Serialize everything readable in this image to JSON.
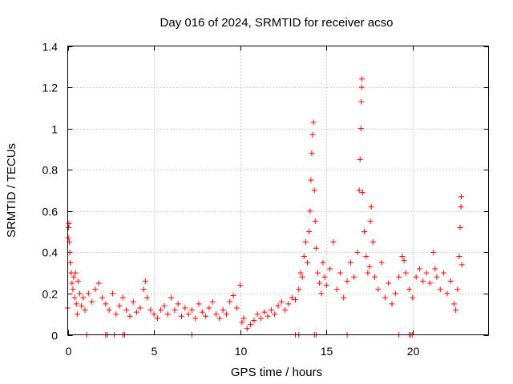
{
  "chart_data": {
    "type": "scatter",
    "title": "Day 016 of 2024, SRMTID for receiver acso",
    "xlabel": "GPS time / hours",
    "ylabel": "SRMTID / TECUs",
    "xlim": [
      0,
      24.4
    ],
    "ylim": [
      0,
      1.4
    ],
    "x_ticks": [
      0,
      5,
      10,
      15,
      20
    ],
    "x_tick_labels": [
      "0",
      "5",
      "10",
      "15",
      "20"
    ],
    "y_ticks": [
      0,
      0.2,
      0.4,
      0.6,
      0.8,
      1.0,
      1.2,
      1.4
    ],
    "y_tick_labels": [
      "0",
      "0.2",
      "0.4",
      "0.6",
      "0.8",
      "1",
      "1.2",
      "1.4"
    ],
    "grid": true,
    "marker": "+",
    "marker_color": "#ff0000",
    "series": [
      {
        "name": "SRMTID",
        "points": [
          [
            0.0,
            0.13
          ],
          [
            0.03,
            0.47
          ],
          [
            0.05,
            0.52
          ],
          [
            0.07,
            0.54
          ],
          [
            0.09,
            0.45
          ],
          [
            0.12,
            0.4
          ],
          [
            0.15,
            0.35
          ],
          [
            0.2,
            0.3
          ],
          [
            0.25,
            0.25
          ],
          [
            0.3,
            0.22
          ],
          [
            0.35,
            0.28
          ],
          [
            0.4,
            0.18
          ],
          [
            0.45,
            0.3
          ],
          [
            0.5,
            0.15
          ],
          [
            0.55,
            0.1
          ],
          [
            0.6,
            0.26
          ],
          [
            0.7,
            0.2
          ],
          [
            0.8,
            0.14
          ],
          [
            0.9,
            0.18
          ],
          [
            1.0,
            0.12
          ],
          [
            1.2,
            0.2
          ],
          [
            1.4,
            0.16
          ],
          [
            1.6,
            0.22
          ],
          [
            1.8,
            0.25
          ],
          [
            2.0,
            0.18
          ],
          [
            2.2,
            0.15
          ],
          [
            2.4,
            0.12
          ],
          [
            2.6,
            0.2
          ],
          [
            2.8,
            0.1
          ],
          [
            3.0,
            0.14
          ],
          [
            3.2,
            0.18
          ],
          [
            3.4,
            0.12
          ],
          [
            3.6,
            0.09
          ],
          [
            3.8,
            0.16
          ],
          [
            4.0,
            0.11
          ],
          [
            4.2,
            0.13
          ],
          [
            4.4,
            0.22
          ],
          [
            4.5,
            0.26
          ],
          [
            4.6,
            0.18
          ],
          [
            4.8,
            0.12
          ],
          [
            5.0,
            0.1
          ],
          [
            5.2,
            0.08
          ],
          [
            5.4,
            0.12
          ],
          [
            5.6,
            0.14
          ],
          [
            5.8,
            0.1
          ],
          [
            6.0,
            0.18
          ],
          [
            6.2,
            0.12
          ],
          [
            6.4,
            0.15
          ],
          [
            6.6,
            0.09
          ],
          [
            6.8,
            0.13
          ],
          [
            7.0,
            0.1
          ],
          [
            7.2,
            0.12
          ],
          [
            7.4,
            0.08
          ],
          [
            7.6,
            0.15
          ],
          [
            7.8,
            0.11
          ],
          [
            8.0,
            0.09
          ],
          [
            8.2,
            0.13
          ],
          [
            8.4,
            0.16
          ],
          [
            8.6,
            0.1
          ],
          [
            8.8,
            0.08
          ],
          [
            9.0,
            0.12
          ],
          [
            9.2,
            0.1
          ],
          [
            9.4,
            0.16
          ],
          [
            9.6,
            0.19
          ],
          [
            9.8,
            0.13
          ],
          [
            10.0,
            0.24
          ],
          [
            10.1,
            0.06
          ],
          [
            10.2,
            0.08
          ],
          [
            10.4,
            0.03
          ],
          [
            10.6,
            0.05
          ],
          [
            10.8,
            0.07
          ],
          [
            11.0,
            0.1
          ],
          [
            11.2,
            0.08
          ],
          [
            11.4,
            0.11
          ],
          [
            11.6,
            0.09
          ],
          [
            11.8,
            0.12
          ],
          [
            12.0,
            0.1
          ],
          [
            12.2,
            0.14
          ],
          [
            12.4,
            0.16
          ],
          [
            12.6,
            0.12
          ],
          [
            12.8,
            0.15
          ],
          [
            13.0,
            0.18
          ],
          [
            13.2,
            0.17
          ],
          [
            13.4,
            0.22
          ],
          [
            13.5,
            0.3
          ],
          [
            13.6,
            0.28
          ],
          [
            13.7,
            0.38
          ],
          [
            13.8,
            0.45
          ],
          [
            13.9,
            0.35
          ],
          [
            14.0,
            0.5
          ],
          [
            14.05,
            0.6
          ],
          [
            14.1,
            0.75
          ],
          [
            14.15,
            0.88
          ],
          [
            14.2,
            0.97
          ],
          [
            14.25,
            1.03
          ],
          [
            14.3,
            0.7
          ],
          [
            14.35,
            0.55
          ],
          [
            14.4,
            0.42
          ],
          [
            14.5,
            0.3
          ],
          [
            14.6,
            0.25
          ],
          [
            14.7,
            0.2
          ],
          [
            14.8,
            0.35
          ],
          [
            14.9,
            0.28
          ],
          [
            15.0,
            0.24
          ],
          [
            15.2,
            0.32
          ],
          [
            15.4,
            0.45
          ],
          [
            15.6,
            0.22
          ],
          [
            15.8,
            0.3
          ],
          [
            16.0,
            0.18
          ],
          [
            16.2,
            0.26
          ],
          [
            16.4,
            0.35
          ],
          [
            16.6,
            0.28
          ],
          [
            16.8,
            0.4
          ],
          [
            16.9,
            0.7
          ],
          [
            16.95,
            0.85
          ],
          [
            17.0,
            1.0
          ],
          [
            17.02,
            1.13
          ],
          [
            17.04,
            1.2
          ],
          [
            17.06,
            1.24
          ],
          [
            17.1,
            0.69
          ],
          [
            17.2,
            0.5
          ],
          [
            17.3,
            0.38
          ],
          [
            17.4,
            0.3
          ],
          [
            17.5,
            0.33
          ],
          [
            17.55,
            0.55
          ],
          [
            17.6,
            0.62
          ],
          [
            17.7,
            0.45
          ],
          [
            17.8,
            0.28
          ],
          [
            18.0,
            0.22
          ],
          [
            18.2,
            0.35
          ],
          [
            18.4,
            0.18
          ],
          [
            18.6,
            0.25
          ],
          [
            18.8,
            0.15
          ],
          [
            19.0,
            0.2
          ],
          [
            19.2,
            0.28
          ],
          [
            19.4,
            0.38
          ],
          [
            19.5,
            0.36
          ],
          [
            19.6,
            0.3
          ],
          [
            19.8,
            0.22
          ],
          [
            20.0,
            0.18
          ],
          [
            20.2,
            0.28
          ],
          [
            20.4,
            0.32
          ],
          [
            20.6,
            0.26
          ],
          [
            20.8,
            0.3
          ],
          [
            21.0,
            0.25
          ],
          [
            21.2,
            0.4
          ],
          [
            21.3,
            0.32
          ],
          [
            21.4,
            0.28
          ],
          [
            21.6,
            0.22
          ],
          [
            21.8,
            0.3
          ],
          [
            22.0,
            0.2
          ],
          [
            22.2,
            0.26
          ],
          [
            22.4,
            0.15
          ],
          [
            22.5,
            0.12
          ],
          [
            22.6,
            0.22
          ],
          [
            22.7,
            0.38
          ],
          [
            22.75,
            0.52
          ],
          [
            22.8,
            0.62
          ],
          [
            22.82,
            0.67
          ],
          [
            22.85,
            0.34
          ]
        ]
      }
    ],
    "zero_value_times": [
      1.1,
      2.2,
      2.3,
      2.7,
      3.2,
      3.3,
      7.2,
      13.2,
      13.4,
      14.3,
      14.4,
      16.2,
      19.2,
      19.8,
      19.9,
      20.0
    ]
  }
}
